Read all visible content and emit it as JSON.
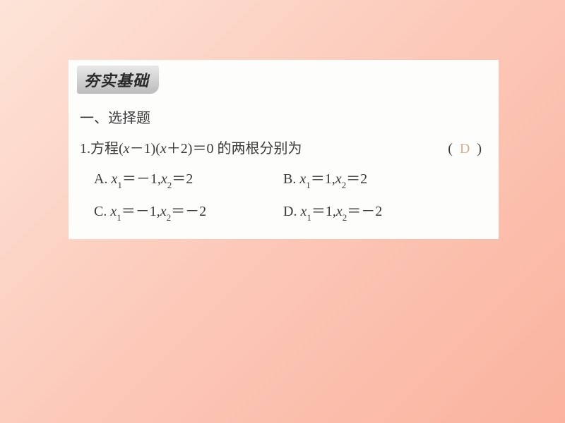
{
  "header": {
    "title": "夯实基础"
  },
  "section": {
    "title": "一、选择题"
  },
  "question": {
    "number": "1.",
    "text_prefix": "方程(",
    "expr_x1": "x",
    "expr_minus": "－",
    "expr_1": "1)(",
    "expr_x2": "x",
    "expr_plus": "＋",
    "expr_2": "2)＝0",
    "text_suffix": " 的两根分别为",
    "paren_open": "(",
    "answer": "D",
    "paren_close": ")"
  },
  "options": {
    "A": {
      "label": "A. ",
      "x1": "x",
      "s1": "1",
      "eq1": "＝－1,",
      "x2": "x",
      "s2": "2",
      "eq2": "＝2"
    },
    "B": {
      "label": "B. ",
      "x1": "x",
      "s1": "1",
      "eq1": "＝1,",
      "x2": "x",
      "s2": "2",
      "eq2": "＝2"
    },
    "C": {
      "label": "C. ",
      "x1": "x",
      "s1": "1",
      "eq1": "＝－1,",
      "x2": "x",
      "s2": "2",
      "eq2": "＝－2"
    },
    "D": {
      "label": "D. ",
      "x1": "x",
      "s1": "1",
      "eq1": "＝1,",
      "x2": "x",
      "s2": "2",
      "eq2": "＝－2"
    }
  },
  "colors": {
    "bg_start": "#fde4d8",
    "bg_end": "#fab39e",
    "box_bg": "#fdfdfb",
    "text": "#3a3a3a",
    "answer": "#d4b08a"
  }
}
